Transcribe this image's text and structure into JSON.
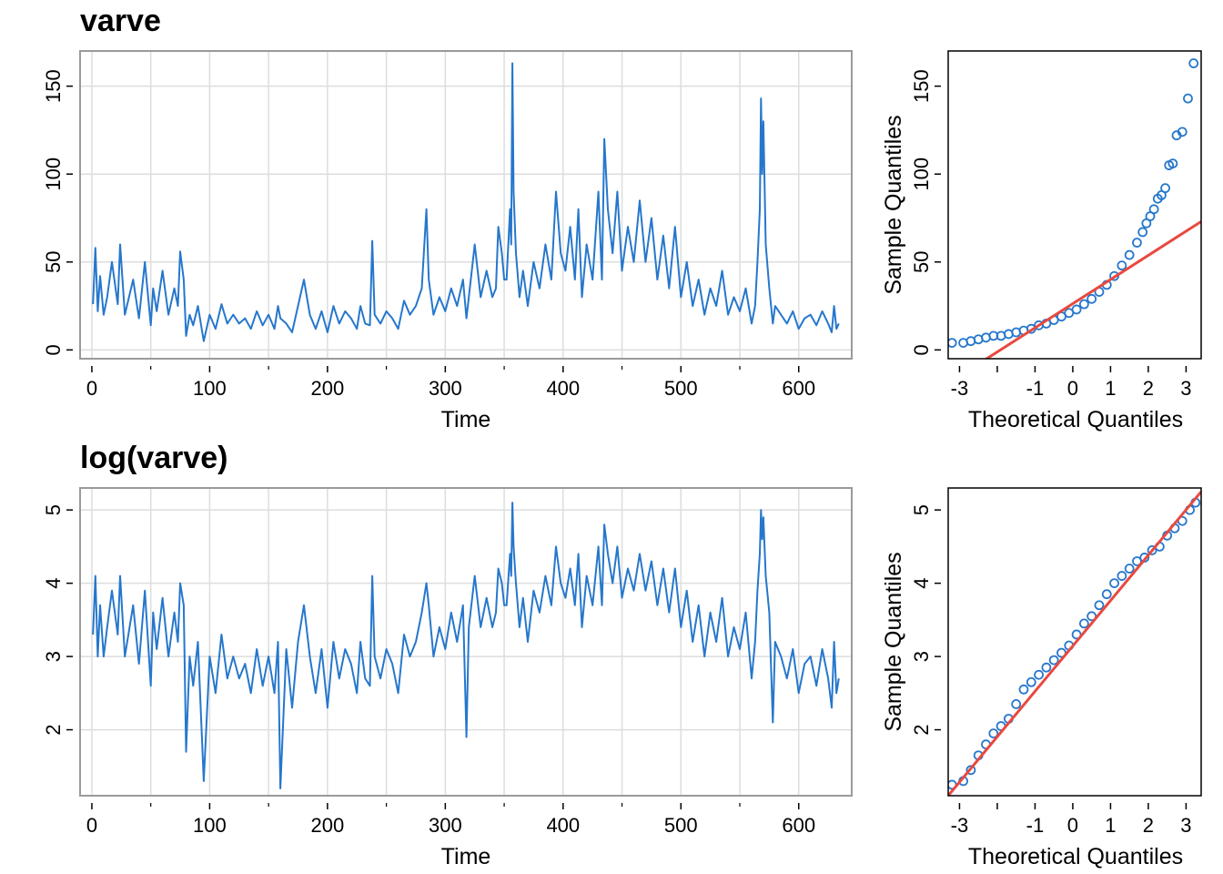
{
  "colors": {
    "series": "#2677cc",
    "qqline": "#e8493f",
    "grid": "#dddddd",
    "frame": "#9a9a9a"
  },
  "chart_data": [
    {
      "type": "line",
      "title": "varve",
      "xlabel": "Time",
      "ylabel": "",
      "xlim": [
        -10,
        645
      ],
      "ylim": [
        -5,
        170
      ],
      "xticks": [
        0,
        100,
        200,
        300,
        400,
        500,
        600
      ],
      "yticks": [
        0,
        50,
        100,
        150
      ],
      "grid": true,
      "series": [
        {
          "x": [
            1,
            3,
            5,
            7,
            10,
            13,
            17,
            22,
            24,
            28,
            35,
            40,
            45,
            50,
            52,
            55,
            60,
            65,
            70,
            73,
            75,
            78,
            80,
            83,
            86,
            90,
            95,
            100,
            105,
            110,
            115,
            120,
            125,
            130,
            135,
            140,
            145,
            150,
            155,
            158,
            160,
            165,
            170,
            175,
            180,
            185,
            190,
            195,
            200,
            205,
            210,
            215,
            220,
            225,
            228,
            232,
            236,
            238,
            240,
            245,
            250,
            255,
            260,
            265,
            270,
            275,
            280,
            284,
            286,
            290,
            295,
            300,
            305,
            310,
            315,
            318,
            320,
            325,
            330,
            335,
            340,
            343,
            345,
            348,
            350,
            352,
            355,
            356,
            357,
            358,
            360,
            363,
            366,
            370,
            375,
            380,
            385,
            390,
            394,
            398,
            402,
            406,
            410,
            413,
            416,
            420,
            425,
            430,
            433,
            435,
            438,
            442,
            446,
            450,
            455,
            460,
            465,
            470,
            475,
            480,
            485,
            490,
            495,
            500,
            505,
            510,
            515,
            520,
            525,
            530,
            535,
            540,
            545,
            550,
            555,
            560,
            563,
            565,
            567,
            568,
            569,
            570,
            572,
            575,
            578,
            580,
            585,
            590,
            595,
            600,
            605,
            610,
            615,
            620,
            625,
            628,
            630,
            632,
            634
          ],
          "y": [
            26,
            58,
            22,
            42,
            20,
            30,
            50,
            26,
            60,
            20,
            40,
            18,
            50,
            14,
            35,
            22,
            45,
            20,
            35,
            25,
            56,
            40,
            8,
            20,
            14,
            25,
            5,
            20,
            12,
            26,
            15,
            20,
            15,
            18,
            12,
            22,
            14,
            20,
            12,
            25,
            18,
            15,
            10,
            25,
            40,
            20,
            12,
            22,
            10,
            25,
            15,
            22,
            18,
            12,
            25,
            15,
            14,
            62,
            20,
            15,
            22,
            18,
            12,
            28,
            20,
            25,
            35,
            80,
            40,
            20,
            30,
            22,
            35,
            25,
            40,
            18,
            30,
            60,
            30,
            45,
            30,
            35,
            70,
            55,
            40,
            40,
            80,
            60,
            163,
            90,
            55,
            30,
            45,
            25,
            50,
            35,
            60,
            40,
            90,
            55,
            45,
            70,
            40,
            80,
            30,
            60,
            40,
            90,
            40,
            120,
            80,
            55,
            90,
            45,
            70,
            50,
            85,
            50,
            75,
            40,
            65,
            35,
            70,
            30,
            50,
            25,
            40,
            20,
            35,
            25,
            45,
            20,
            30,
            22,
            35,
            15,
            25,
            50,
            80,
            143,
            100,
            130,
            60,
            35,
            15,
            25,
            20,
            15,
            22,
            12,
            18,
            20,
            14,
            22,
            15,
            10,
            25,
            12,
            15
          ]
        }
      ]
    },
    {
      "type": "scatter",
      "title": "",
      "xlabel": "Theoretical Quantiles",
      "ylabel": "Sample Quantiles",
      "xlim": [
        -3.3,
        3.4
      ],
      "ylim": [
        -5,
        170
      ],
      "xticks": [
        -3,
        -1,
        0,
        1,
        2,
        3
      ],
      "yticks": [
        0,
        50,
        100,
        150
      ],
      "grid": false,
      "series": [
        {
          "x": [
            -3.2,
            -2.9,
            -2.7,
            -2.5,
            -2.3,
            -2.1,
            -1.9,
            -1.7,
            -1.5,
            -1.3,
            -1.1,
            -0.9,
            -0.7,
            -0.5,
            -0.3,
            -0.1,
            0.1,
            0.3,
            0.5,
            0.7,
            0.9,
            1.1,
            1.3,
            1.5,
            1.7,
            1.85,
            1.95,
            2.05,
            2.15,
            2.25,
            2.35,
            2.45,
            2.55,
            2.65,
            2.75,
            2.9,
            3.05,
            3.2
          ],
          "y": [
            4,
            4,
            5,
            6,
            7,
            8,
            8,
            9,
            10,
            11,
            12,
            14,
            15,
            17,
            19,
            21,
            23,
            26,
            29,
            33,
            37,
            42,
            48,
            54,
            61,
            67,
            72,
            76,
            80,
            86,
            88,
            92,
            105,
            106,
            122,
            124,
            143,
            163
          ]
        },
        {
          "name": "reference line",
          "x": [
            -3.3,
            3.4
          ],
          "y": [
            -19,
            73
          ]
        }
      ]
    },
    {
      "type": "line",
      "title": "log(varve)",
      "xlabel": "Time",
      "ylabel": "",
      "xlim": [
        -10,
        645
      ],
      "ylim": [
        1.1,
        5.3
      ],
      "xticks": [
        0,
        100,
        200,
        300,
        400,
        500,
        600
      ],
      "yticks": [
        2,
        3,
        4,
        5
      ],
      "grid": true,
      "series": [
        {
          "x": [
            1,
            3,
            5,
            7,
            10,
            13,
            17,
            22,
            24,
            28,
            35,
            40,
            45,
            50,
            52,
            55,
            60,
            65,
            70,
            73,
            75,
            78,
            80,
            83,
            86,
            90,
            95,
            100,
            105,
            110,
            115,
            120,
            125,
            130,
            135,
            140,
            145,
            150,
            155,
            158,
            160,
            165,
            170,
            175,
            180,
            185,
            190,
            195,
            200,
            205,
            210,
            215,
            220,
            225,
            228,
            232,
            236,
            238,
            240,
            245,
            250,
            255,
            260,
            265,
            270,
            275,
            280,
            284,
            286,
            290,
            295,
            300,
            305,
            310,
            315,
            318,
            320,
            325,
            330,
            335,
            340,
            343,
            345,
            348,
            350,
            352,
            355,
            356,
            357,
            358,
            360,
            363,
            366,
            370,
            375,
            380,
            385,
            390,
            394,
            398,
            402,
            406,
            410,
            413,
            416,
            420,
            425,
            430,
            433,
            435,
            438,
            442,
            446,
            450,
            455,
            460,
            465,
            470,
            475,
            480,
            485,
            490,
            495,
            500,
            505,
            510,
            515,
            520,
            525,
            530,
            535,
            540,
            545,
            550,
            555,
            560,
            563,
            565,
            567,
            568,
            569,
            570,
            572,
            575,
            578,
            580,
            585,
            590,
            595,
            600,
            605,
            610,
            615,
            620,
            625,
            628,
            630,
            632,
            634
          ],
          "y": [
            3.3,
            4.1,
            3.0,
            3.7,
            3.0,
            3.4,
            3.9,
            3.3,
            4.1,
            3.0,
            3.7,
            2.9,
            3.9,
            2.6,
            3.6,
            3.1,
            3.8,
            3.0,
            3.6,
            3.2,
            4.0,
            3.7,
            1.7,
            3.0,
            2.6,
            3.2,
            1.3,
            3.0,
            2.5,
            3.3,
            2.7,
            3.0,
            2.7,
            2.9,
            2.5,
            3.1,
            2.6,
            3.0,
            2.5,
            3.2,
            1.2,
            3.1,
            2.3,
            3.2,
            3.7,
            3.0,
            2.5,
            3.1,
            2.3,
            3.2,
            2.7,
            3.1,
            2.9,
            2.5,
            3.2,
            2.7,
            2.6,
            4.1,
            3.0,
            2.7,
            3.1,
            2.9,
            2.5,
            3.3,
            3.0,
            3.2,
            3.6,
            4.0,
            3.7,
            3.0,
            3.4,
            3.1,
            3.6,
            3.2,
            3.7,
            1.9,
            3.4,
            4.1,
            3.4,
            3.8,
            3.4,
            3.6,
            4.2,
            4.0,
            3.7,
            3.7,
            4.4,
            4.1,
            5.1,
            4.5,
            4.0,
            3.4,
            3.8,
            3.2,
            3.9,
            3.6,
            4.1,
            3.7,
            4.5,
            4.0,
            3.8,
            4.2,
            3.7,
            4.4,
            3.4,
            4.1,
            3.7,
            4.5,
            3.7,
            4.8,
            4.4,
            4.0,
            4.5,
            3.8,
            4.2,
            3.9,
            4.4,
            3.9,
            4.3,
            3.7,
            4.2,
            3.6,
            4.2,
            3.4,
            3.9,
            3.2,
            3.7,
            3.0,
            3.6,
            3.2,
            3.8,
            3.0,
            3.4,
            3.1,
            3.6,
            2.7,
            3.2,
            3.9,
            4.4,
            5.0,
            4.6,
            4.9,
            4.1,
            3.6,
            2.1,
            3.2,
            3.0,
            2.7,
            3.1,
            2.5,
            2.9,
            3.0,
            2.6,
            3.1,
            2.7,
            2.3,
            3.2,
            2.5,
            2.7
          ]
        }
      ]
    },
    {
      "type": "scatter",
      "title": "",
      "xlabel": "Theoretical Quantiles",
      "ylabel": "Sample Quantiles",
      "xlim": [
        -3.3,
        3.4
      ],
      "ylim": [
        1.1,
        5.3
      ],
      "xticks": [
        -3,
        -1,
        0,
        1,
        2,
        3
      ],
      "yticks": [
        2,
        3,
        4,
        5
      ],
      "grid": false,
      "series": [
        {
          "x": [
            -3.2,
            -2.9,
            -2.7,
            -2.5,
            -2.3,
            -2.1,
            -1.9,
            -1.7,
            -1.5,
            -1.3,
            -1.1,
            -0.9,
            -0.7,
            -0.5,
            -0.3,
            -0.1,
            0.1,
            0.3,
            0.5,
            0.7,
            0.9,
            1.1,
            1.3,
            1.5,
            1.7,
            1.9,
            2.1,
            2.3,
            2.5,
            2.7,
            2.9,
            3.1,
            3.25
          ],
          "y": [
            1.25,
            1.3,
            1.45,
            1.65,
            1.8,
            1.95,
            2.05,
            2.15,
            2.35,
            2.55,
            2.65,
            2.75,
            2.85,
            2.95,
            3.05,
            3.15,
            3.3,
            3.45,
            3.55,
            3.7,
            3.85,
            4.0,
            4.1,
            4.2,
            4.3,
            4.35,
            4.45,
            4.5,
            4.65,
            4.75,
            4.85,
            5.0,
            5.1
          ]
        },
        {
          "name": "reference line",
          "x": [
            -3.3,
            3.4
          ],
          "y": [
            1.1,
            5.25
          ]
        }
      ]
    }
  ]
}
